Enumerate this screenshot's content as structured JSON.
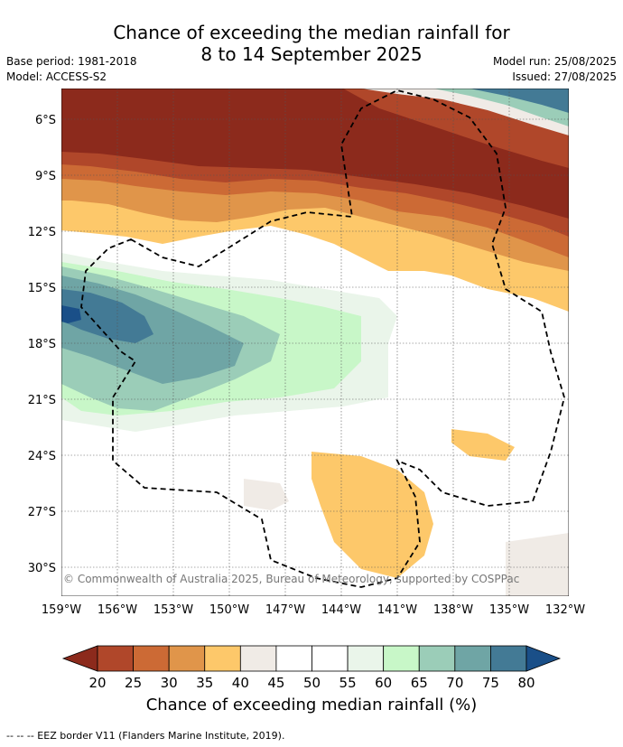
{
  "title_line1": "Chance of exceeding the median rainfall for",
  "title_line2": "8 to 14 September 2025",
  "base_period": "Base period: 1981-2018",
  "model": "Model: ACCESS-S2",
  "model_run": "Model run: 25/08/2025",
  "issued": "Issued: 27/08/2025",
  "copyright": "© Commonwealth of Australia 2025, Bureau of Meteorology, supported by COSPPac",
  "lat_labels": [
    "6°S",
    "9°S",
    "12°S",
    "15°S",
    "18°S",
    "21°S",
    "24°S",
    "27°S",
    "30°S"
  ],
  "lon_labels": [
    "159°W",
    "156°W",
    "153°W",
    "150°W",
    "147°W",
    "144°W",
    "141°W",
    "138°W",
    "135°W",
    "132°W"
  ],
  "colorbar": {
    "ticks": [
      "20",
      "25",
      "30",
      "35",
      "40",
      "45",
      "50",
      "55",
      "60",
      "65",
      "70",
      "75",
      "80"
    ],
    "colors": [
      "#8c2a1c",
      "#b0472a",
      "#cc6a35",
      "#e0954a",
      "#fdc86a",
      "#f0ebe6",
      "#ffffff",
      "#ffffff",
      "#eaf5ea",
      "#c8f7c8",
      "#9bcdb8",
      "#6fa5a5",
      "#437a95",
      "#1a4f88"
    ],
    "title": "Chance of exceeding median rainfall (%)"
  },
  "footer": "--  --  -- EEZ border V11 (Flanders Marine Institute, 2019)."
}
